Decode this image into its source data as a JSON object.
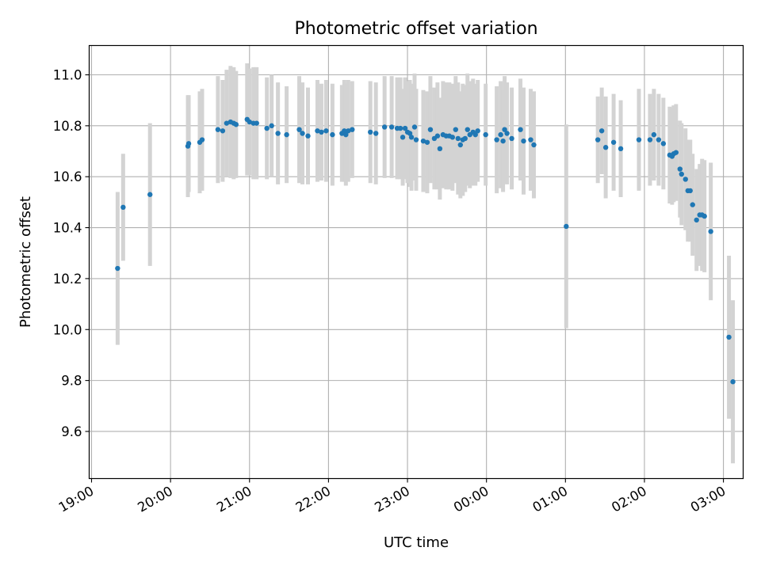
{
  "chart_data": {
    "type": "scatter",
    "title": "Photometric offset variation",
    "xlabel": "UTC time",
    "ylabel": "Photometric offset",
    "x_unit": "hours (UTC clock; values after midnight continue past 24)",
    "xlim": [
      18.97,
      27.25
    ],
    "ylim": [
      9.415,
      11.115
    ],
    "x_ticks": [
      {
        "value": 19,
        "label": "19:00"
      },
      {
        "value": 20,
        "label": "20:00"
      },
      {
        "value": 21,
        "label": "21:00"
      },
      {
        "value": 22,
        "label": "22:00"
      },
      {
        "value": 23,
        "label": "23:00"
      },
      {
        "value": 24,
        "label": "00:00"
      },
      {
        "value": 25,
        "label": "01:00"
      },
      {
        "value": 26,
        "label": "02:00"
      },
      {
        "value": 27,
        "label": "03:00"
      }
    ],
    "y_ticks": [
      {
        "value": 9.6,
        "label": "9.6"
      },
      {
        "value": 9.8,
        "label": "9.8"
      },
      {
        "value": 10.0,
        "label": "10.0"
      },
      {
        "value": 10.2,
        "label": "10.2"
      },
      {
        "value": 10.4,
        "label": "10.4"
      },
      {
        "value": 10.6,
        "label": "10.6"
      },
      {
        "value": 10.8,
        "label": "10.8"
      },
      {
        "value": 11.0,
        "label": "11.0"
      }
    ],
    "grid": true,
    "colors": {
      "marker": "#1f77b4",
      "errorbar": "#d3d3d3",
      "grid": "#b0b0b0"
    },
    "points": [
      [
        19.33,
        10.24,
        0.3
      ],
      [
        19.4,
        10.48,
        0.21
      ],
      [
        19.74,
        10.53,
        0.28
      ],
      [
        20.22,
        10.72,
        0.2
      ],
      [
        20.23,
        10.73,
        0.19
      ],
      [
        20.37,
        10.735,
        0.2
      ],
      [
        20.4,
        10.745,
        0.2
      ],
      [
        20.6,
        10.785,
        0.21
      ],
      [
        20.66,
        10.78,
        0.2
      ],
      [
        20.71,
        10.81,
        0.21
      ],
      [
        20.76,
        10.815,
        0.22
      ],
      [
        20.8,
        10.81,
        0.22
      ],
      [
        20.83,
        10.805,
        0.21
      ],
      [
        20.97,
        10.825,
        0.22
      ],
      [
        21.0,
        10.815,
        0.21
      ],
      [
        21.05,
        10.81,
        0.22
      ],
      [
        21.09,
        10.81,
        0.22
      ],
      [
        21.22,
        10.79,
        0.2
      ],
      [
        21.28,
        10.8,
        0.2
      ],
      [
        21.36,
        10.77,
        0.2
      ],
      [
        21.47,
        10.765,
        0.19
      ],
      [
        21.63,
        10.785,
        0.21
      ],
      [
        21.67,
        10.77,
        0.2
      ],
      [
        21.74,
        10.76,
        0.19
      ],
      [
        21.86,
        10.78,
        0.2
      ],
      [
        21.91,
        10.775,
        0.19
      ],
      [
        21.97,
        10.78,
        0.2
      ],
      [
        22.05,
        10.765,
        0.2
      ],
      [
        22.17,
        10.77,
        0.19
      ],
      [
        22.2,
        10.78,
        0.2
      ],
      [
        22.22,
        10.765,
        0.2
      ],
      [
        22.25,
        10.78,
        0.2
      ],
      [
        22.3,
        10.785,
        0.19
      ],
      [
        22.53,
        10.775,
        0.2
      ],
      [
        22.6,
        10.77,
        0.2
      ],
      [
        22.71,
        10.795,
        0.2
      ],
      [
        22.8,
        10.795,
        0.2
      ],
      [
        22.87,
        10.79,
        0.2
      ],
      [
        22.91,
        10.79,
        0.2
      ],
      [
        22.94,
        10.755,
        0.19
      ],
      [
        22.97,
        10.79,
        0.2
      ],
      [
        23.0,
        10.775,
        0.2
      ],
      [
        23.03,
        10.77,
        0.21
      ],
      [
        23.05,
        10.755,
        0.21
      ],
      [
        23.09,
        10.795,
        0.21
      ],
      [
        23.11,
        10.745,
        0.2
      ],
      [
        23.2,
        10.74,
        0.2
      ],
      [
        23.25,
        10.735,
        0.2
      ],
      [
        23.29,
        10.785,
        0.21
      ],
      [
        23.34,
        10.75,
        0.2
      ],
      [
        23.38,
        10.76,
        0.21
      ],
      [
        23.41,
        10.71,
        0.2
      ],
      [
        23.45,
        10.765,
        0.21
      ],
      [
        23.49,
        10.76,
        0.21
      ],
      [
        23.53,
        10.76,
        0.21
      ],
      [
        23.57,
        10.755,
        0.21
      ],
      [
        23.61,
        10.785,
        0.21
      ],
      [
        23.64,
        10.75,
        0.22
      ],
      [
        23.67,
        10.725,
        0.21
      ],
      [
        23.7,
        10.745,
        0.22
      ],
      [
        23.73,
        10.75,
        0.21
      ],
      [
        23.76,
        10.785,
        0.22
      ],
      [
        23.79,
        10.765,
        0.21
      ],
      [
        23.83,
        10.775,
        0.21
      ],
      [
        23.86,
        10.765,
        0.2
      ],
      [
        23.89,
        10.78,
        0.2
      ],
      [
        23.99,
        10.765,
        0.2
      ],
      [
        24.13,
        10.745,
        0.21
      ],
      [
        24.18,
        10.765,
        0.21
      ],
      [
        24.21,
        10.74,
        0.2
      ],
      [
        24.23,
        10.785,
        0.21
      ],
      [
        24.26,
        10.77,
        0.2
      ],
      [
        24.32,
        10.75,
        0.2
      ],
      [
        24.43,
        10.785,
        0.2
      ],
      [
        24.47,
        10.74,
        0.21
      ],
      [
        24.56,
        10.745,
        0.2
      ],
      [
        24.6,
        10.725,
        0.21
      ],
      [
        25.01,
        10.405,
        0.4
      ],
      [
        25.41,
        10.745,
        0.17
      ],
      [
        25.46,
        10.78,
        0.17
      ],
      [
        25.51,
        10.715,
        0.2
      ],
      [
        25.61,
        10.735,
        0.19
      ],
      [
        25.7,
        10.71,
        0.19
      ],
      [
        25.93,
        10.745,
        0.2
      ],
      [
        26.07,
        10.745,
        0.18
      ],
      [
        26.12,
        10.765,
        0.18
      ],
      [
        26.18,
        10.745,
        0.18
      ],
      [
        26.24,
        10.73,
        0.18
      ],
      [
        26.32,
        10.685,
        0.19
      ],
      [
        26.35,
        10.68,
        0.19
      ],
      [
        26.37,
        10.69,
        0.19
      ],
      [
        26.4,
        10.695,
        0.19
      ],
      [
        26.45,
        10.63,
        0.19
      ],
      [
        26.47,
        10.61,
        0.2
      ],
      [
        26.52,
        10.59,
        0.2
      ],
      [
        26.55,
        10.545,
        0.2
      ],
      [
        26.58,
        10.545,
        0.2
      ],
      [
        26.61,
        10.49,
        0.2
      ],
      [
        26.66,
        10.43,
        0.2
      ],
      [
        26.7,
        10.45,
        0.2
      ],
      [
        26.73,
        10.45,
        0.22
      ],
      [
        26.76,
        10.445,
        0.22
      ],
      [
        26.84,
        10.385,
        0.27
      ],
      [
        27.07,
        9.97,
        0.32
      ],
      [
        27.12,
        9.795,
        0.32
      ]
    ]
  }
}
